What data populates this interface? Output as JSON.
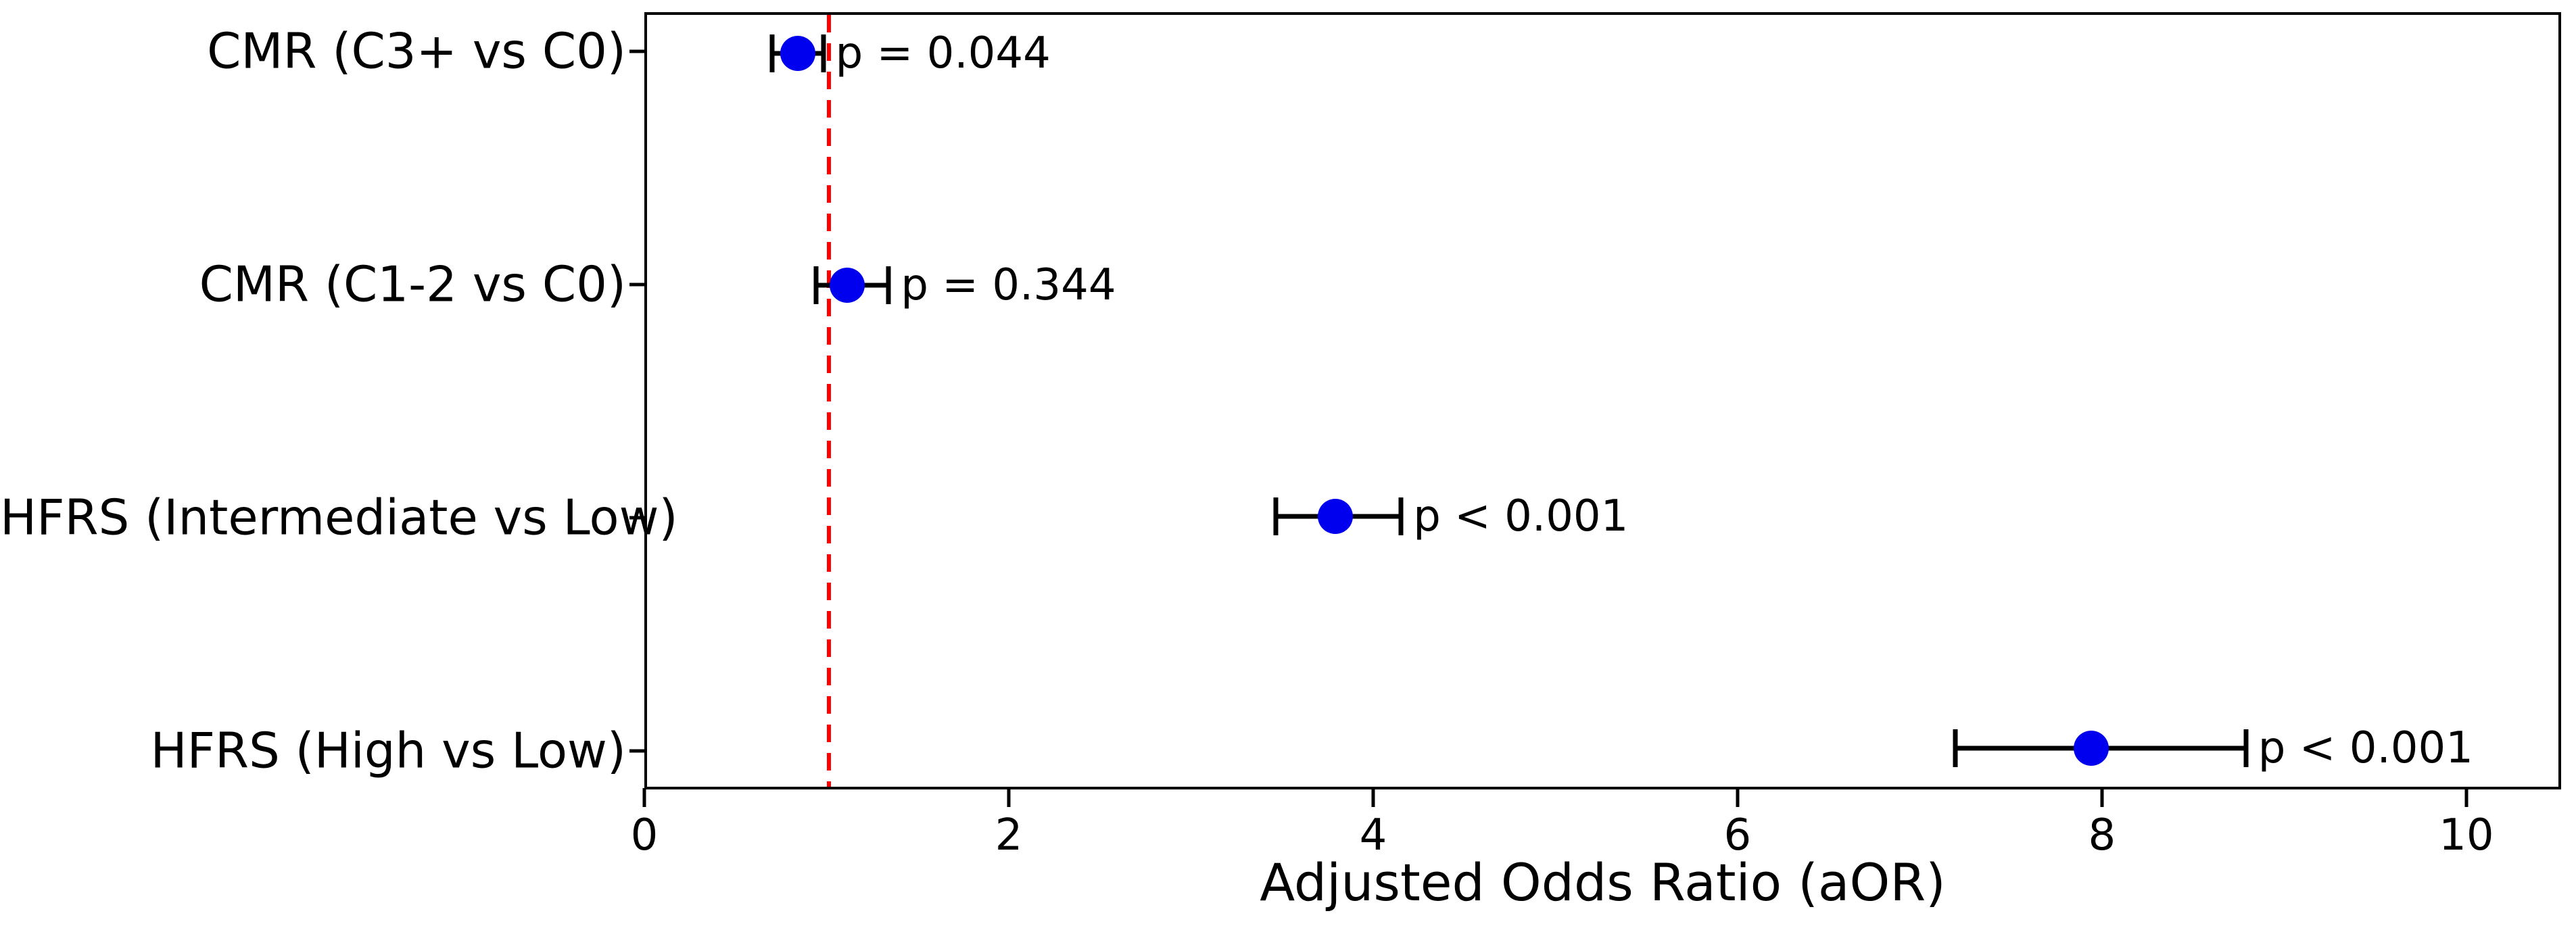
{
  "chart_data": {
    "type": "scatter",
    "subtype": "forest-plot",
    "title": "",
    "xlabel": "Adjusted Odds Ratio (aOR)",
    "ylabel": "",
    "xlim": [
      0,
      10.52
    ],
    "x_ticks": [
      0,
      2,
      4,
      6,
      8,
      10
    ],
    "x_tick_labels": [
      "0",
      "2",
      "4",
      "6",
      "8",
      "10"
    ],
    "grid": false,
    "legend": "none",
    "reference_line": {
      "x": 1.0,
      "color": "#ff0000",
      "style": "dashed"
    },
    "marker_color": "#0000ee",
    "errorbar_color": "#000000",
    "rows": [
      {
        "label": "CMR (C3+ vs C0)",
        "aor": 0.83,
        "ci_low": 0.69,
        "ci_high": 0.97,
        "p_label": "p = 0.044"
      },
      {
        "label": "CMR (C1-2 vs C0)",
        "aor": 1.1,
        "ci_low": 0.93,
        "ci_high": 1.33,
        "p_label": "p = 0.344"
      },
      {
        "label": "HFRS (Intermediate vs Low)",
        "aor": 3.79,
        "ci_low": 3.46,
        "ci_high": 4.15,
        "p_label": "p < 0.001"
      },
      {
        "label": "HFRS (High vs Low)",
        "aor": 7.95,
        "ci_low": 7.2,
        "ci_high": 8.8,
        "p_label": "p < 0.001"
      }
    ]
  }
}
